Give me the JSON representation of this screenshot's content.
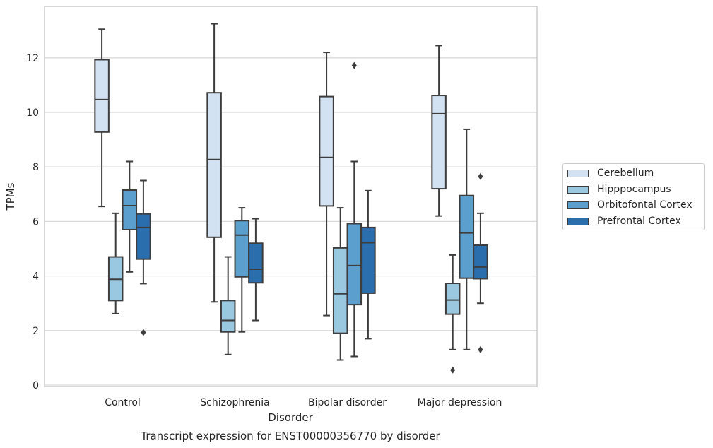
{
  "chart_data": {
    "type": "box",
    "caption": "Transcript expression for ENST00000356770 by disorder",
    "xlabel": "Disorder",
    "ylabel": "TPMs",
    "ylim": [
      -0.1,
      13.8
    ],
    "yticks": [
      0,
      2,
      4,
      6,
      8,
      10,
      12
    ],
    "ytick_labels": [
      "0",
      "2",
      "4",
      "6",
      "8",
      "10",
      "12"
    ],
    "grid": "horizontal",
    "legend_position": "right",
    "categories": [
      "Control",
      "Schizophrenia",
      "Bipolar disorder",
      "Major depression"
    ],
    "series": [
      {
        "name": "Cerebellum",
        "color": "#d2e2f2",
        "boxes": [
          {
            "whislo": 6.55,
            "q1": 9.28,
            "med": 10.47,
            "q3": 11.93,
            "whishi": 13.05,
            "fliers": []
          },
          {
            "whislo": 3.05,
            "q1": 5.42,
            "med": 8.27,
            "q3": 10.72,
            "whishi": 13.25,
            "fliers": []
          },
          {
            "whislo": 2.55,
            "q1": 6.57,
            "med": 8.35,
            "q3": 10.58,
            "whishi": 12.2,
            "fliers": []
          },
          {
            "whislo": 6.2,
            "q1": 7.2,
            "med": 9.95,
            "q3": 10.62,
            "whishi": 12.45,
            "fliers": []
          }
        ]
      },
      {
        "name": "Hipppocampus",
        "color": "#9ac8e0",
        "boxes": [
          {
            "whislo": 2.62,
            "q1": 3.1,
            "med": 3.88,
            "q3": 4.7,
            "whishi": 6.3,
            "fliers": []
          },
          {
            "whislo": 1.12,
            "q1": 1.95,
            "med": 2.37,
            "q3": 3.1,
            "whishi": 4.7,
            "fliers": []
          },
          {
            "whislo": 0.92,
            "q1": 1.9,
            "med": 3.35,
            "q3": 5.03,
            "whishi": 6.5,
            "fliers": []
          },
          {
            "whislo": 1.3,
            "q1": 2.6,
            "med": 3.12,
            "q3": 3.73,
            "whishi": 4.77,
            "fliers": [
              0.55
            ]
          }
        ]
      },
      {
        "name": "Orbitofontal Cortex",
        "color": "#5a9fcd",
        "boxes": [
          {
            "whislo": 4.15,
            "q1": 5.7,
            "med": 6.58,
            "q3": 7.15,
            "whishi": 8.2,
            "fliers": []
          },
          {
            "whislo": 1.95,
            "q1": 3.97,
            "med": 5.5,
            "q3": 6.03,
            "whishi": 6.5,
            "fliers": []
          },
          {
            "whislo": 1.05,
            "q1": 2.95,
            "med": 4.38,
            "q3": 5.92,
            "whishi": 8.2,
            "fliers": [
              11.72
            ]
          },
          {
            "whislo": 1.3,
            "q1": 3.92,
            "med": 5.58,
            "q3": 6.95,
            "whishi": 9.38,
            "fliers": []
          }
        ]
      },
      {
        "name": "Prefrontal Cortex",
        "color": "#2b6ead",
        "boxes": [
          {
            "whislo": 3.72,
            "q1": 4.62,
            "med": 5.78,
            "q3": 6.28,
            "whishi": 7.5,
            "fliers": [
              1.93
            ]
          },
          {
            "whislo": 2.37,
            "q1": 3.75,
            "med": 4.25,
            "q3": 5.2,
            "whishi": 6.1,
            "fliers": []
          },
          {
            "whislo": 1.7,
            "q1": 3.37,
            "med": 5.22,
            "q3": 5.78,
            "whishi": 7.13,
            "fliers": []
          },
          {
            "whislo": 3.0,
            "q1": 3.9,
            "med": 4.33,
            "q3": 5.13,
            "whishi": 6.3,
            "fliers": [
              7.65,
              1.3
            ]
          }
        ]
      }
    ]
  }
}
